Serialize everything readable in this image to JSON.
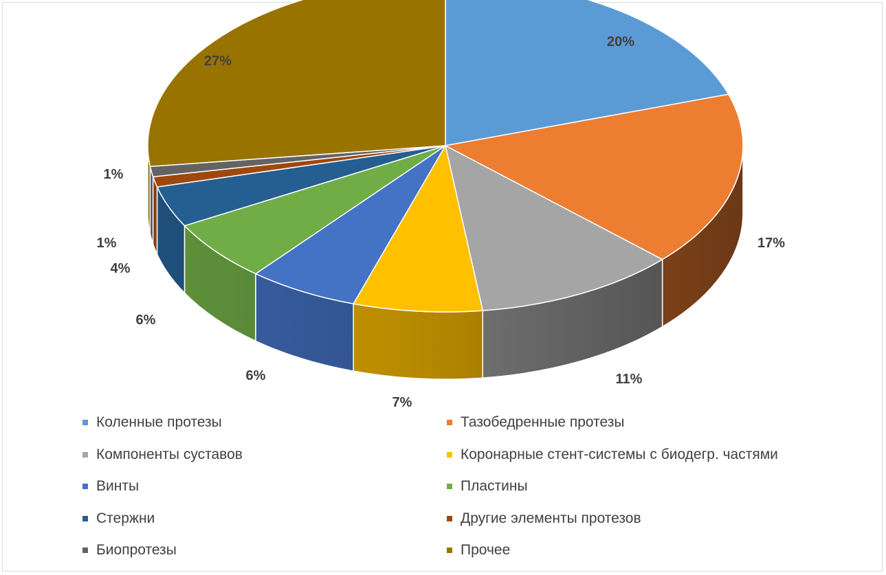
{
  "chart_data": {
    "type": "pie",
    "variant": "3d",
    "categories": [
      "Коленные протезы",
      "Тазобедренные протезы",
      "Компоненты суставов",
      "Коронарные стент-системы с биодегр. частями",
      "Винты",
      "Пластины",
      "Стержни",
      "Другие элементы протезов",
      "Биопротезы",
      "Прочее"
    ],
    "values": [
      20,
      17,
      11,
      7,
      6,
      6,
      4,
      1,
      1,
      27
    ],
    "labels": [
      "20%",
      "17%",
      "11%",
      "7%",
      "6%",
      "6%",
      "4%",
      "1%",
      "1%",
      "27%"
    ],
    "colors": [
      "#5b9bd5",
      "#ed7d31",
      "#a5a5a5",
      "#ffc000",
      "#4472c4",
      "#70ad47",
      "#255e91",
      "#9e480e",
      "#636363",
      "#997300"
    ],
    "legend_position": "bottom",
    "legend_columns": 2
  }
}
